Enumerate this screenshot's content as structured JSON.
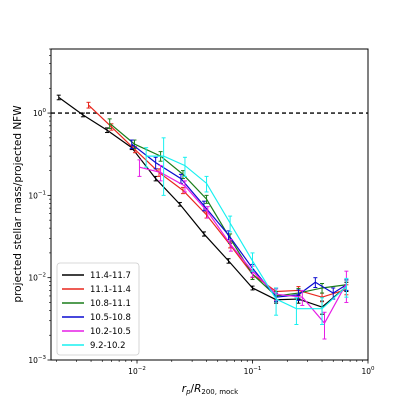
{
  "chart_data": {
    "type": "line",
    "xlabel": "r_p/R_200,mock",
    "ylabel": "projected stellar mass/projected NFW",
    "xscale": "log",
    "yscale": "log",
    "xlim": [
      0.0018,
      1.0
    ],
    "ylim": [
      0.001,
      6.0
    ],
    "x_ticks": [
      {
        "value": 0.01,
        "base": "10",
        "exp": "−2"
      },
      {
        "value": 0.1,
        "base": "10",
        "exp": "−1"
      },
      {
        "value": 1.0,
        "base": "10",
        "exp": "0"
      }
    ],
    "y_ticks": [
      {
        "value": 0.001,
        "base": "10",
        "exp": "−3"
      },
      {
        "value": 0.01,
        "base": "10",
        "exp": "−2"
      },
      {
        "value": 0.1,
        "base": "10",
        "exp": "−1"
      },
      {
        "value": 1.0,
        "base": "10",
        "exp": "0"
      }
    ],
    "reference_line": {
      "y": 1.0,
      "style": "dashed",
      "color": "#000000"
    },
    "legend_position": "lower-left",
    "series": [
      {
        "name": "11.4-11.7",
        "color": "#000000",
        "x": [
          0.0021,
          0.0034,
          0.0055,
          0.009,
          0.0145,
          0.0235,
          0.038,
          0.062,
          0.1,
          0.16,
          0.25,
          0.4,
          0.65
        ],
        "y": [
          1.55,
          0.95,
          0.62,
          0.38,
          0.16,
          0.078,
          0.034,
          0.016,
          0.0075,
          0.0054,
          0.0055,
          0.0044,
          0.0078
        ],
        "err": [
          0.1,
          0.05,
          0.04,
          0.02,
          0.01,
          0.004,
          0.002,
          0.001,
          0.0004,
          0.0005,
          0.0006,
          0.0008,
          0.001
        ]
      },
      {
        "name": "11.1-11.4",
        "color": "#e8261d",
        "x": [
          0.0038,
          0.006,
          0.0096,
          0.0155,
          0.025,
          0.04,
          0.064,
          0.1,
          0.16,
          0.25,
          0.4,
          0.65
        ],
        "y": [
          1.25,
          0.68,
          0.36,
          0.19,
          0.115,
          0.058,
          0.025,
          0.011,
          0.0068,
          0.007,
          0.0058,
          0.0072
        ],
        "err": [
          0.1,
          0.06,
          0.03,
          0.02,
          0.01,
          0.005,
          0.002,
          0.001,
          0.0007,
          0.0008,
          0.0007,
          0.001
        ]
      },
      {
        "name": "10.8-11.1",
        "color": "#1a7d1a",
        "x": [
          0.0058,
          0.0095,
          0.016,
          0.025,
          0.04,
          0.064,
          0.1,
          0.16,
          0.25,
          0.4,
          0.65
        ],
        "y": [
          0.75,
          0.42,
          0.3,
          0.18,
          0.09,
          0.03,
          0.011,
          0.006,
          0.0065,
          0.0075,
          0.0082
        ],
        "err": [
          0.1,
          0.05,
          0.04,
          0.02,
          0.01,
          0.004,
          0.0015,
          0.0008,
          0.0009,
          0.001,
          0.0012
        ]
      },
      {
        "name": "10.5-10.8",
        "color": "#0a0ad0",
        "x": [
          0.009,
          0.0145,
          0.024,
          0.038,
          0.062,
          0.1,
          0.16,
          0.25,
          0.35,
          0.5,
          0.65
        ],
        "y": [
          0.42,
          0.25,
          0.16,
          0.075,
          0.033,
          0.013,
          0.0058,
          0.0062,
          0.0088,
          0.0065,
          0.0082
        ],
        "err": [
          0.05,
          0.04,
          0.02,
          0.01,
          0.004,
          0.0015,
          0.0007,
          0.0009,
          0.0012,
          0.001,
          0.0012
        ]
      },
      {
        "name": "10.2-10.5",
        "color": "#e61ee6",
        "x": [
          0.0105,
          0.016,
          0.026,
          0.041,
          0.065,
          0.1,
          0.16,
          0.27,
          0.42,
          0.65
        ],
        "y": [
          0.22,
          0.19,
          0.13,
          0.063,
          0.025,
          0.012,
          0.0063,
          0.0058,
          0.0028,
          0.0085
        ],
        "err": [
          0.05,
          0.04,
          0.02,
          0.01,
          0.004,
          0.0018,
          0.001,
          0.0012,
          0.001,
          0.0035
        ]
      },
      {
        "name": "9.2-10.2",
        "color": "#18f0f0",
        "x": [
          0.012,
          0.017,
          0.026,
          0.04,
          0.064,
          0.1,
          0.16,
          0.24,
          0.4,
          0.65
        ],
        "y": [
          0.3,
          0.3,
          0.23,
          0.14,
          0.046,
          0.016,
          0.0055,
          0.0042,
          0.0042,
          0.0078
        ],
        "err": [
          0.08,
          0.2,
          0.06,
          0.03,
          0.01,
          0.004,
          0.002,
          0.0015,
          0.0015,
          0.002
        ]
      }
    ]
  }
}
